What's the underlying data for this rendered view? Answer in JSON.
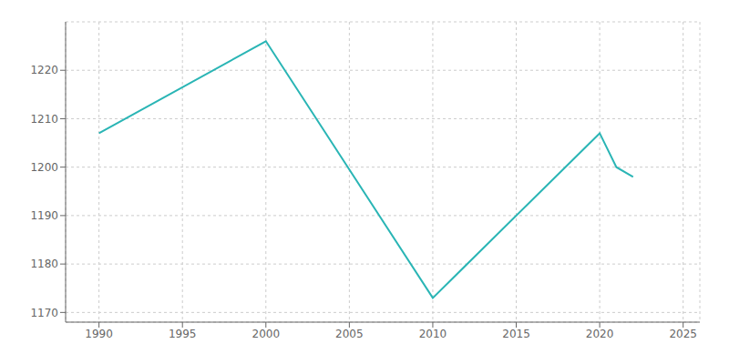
{
  "chart_data": {
    "type": "line",
    "x": [
      1990,
      2000,
      2010,
      2020,
      2021,
      2022
    ],
    "values": [
      1207,
      1226,
      1173,
      1207,
      1200,
      1198
    ],
    "color": "#2ab5b5",
    "xlim": [
      1988,
      2026
    ],
    "ylim": [
      1168,
      1230
    ],
    "xticks": [
      1990,
      1995,
      2000,
      2005,
      2010,
      2015,
      2020,
      2025
    ],
    "yticks": [
      1170,
      1180,
      1190,
      1200,
      1210,
      1220
    ],
    "grid": true
  }
}
